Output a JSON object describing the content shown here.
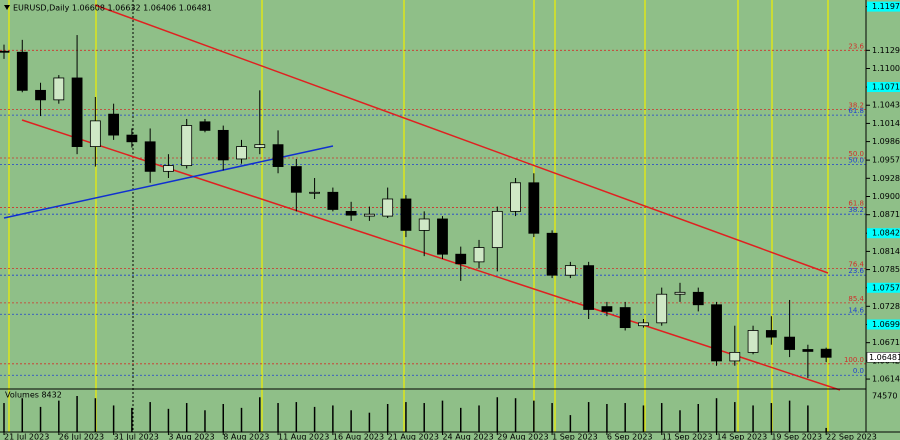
{
  "chart_data": {
    "type": "candlestick",
    "title": "EURUSD,Daily  1.06608 1.06632 1.06406 1.06481",
    "volume_label": "Volumes 8432",
    "categories": [
      "21 Jul 2023",
      null,
      null,
      "26 Jul 2023",
      null,
      null,
      "31 Jul 2023",
      null,
      null,
      "3 Aug 2023",
      null,
      null,
      "8 Aug 2023",
      null,
      null,
      "11 Aug 2023",
      null,
      null,
      "16 Aug 2023",
      null,
      null,
      "21 Aug 2023",
      null,
      null,
      "24 Aug 2023",
      null,
      null,
      "29 Aug 2023",
      null,
      null,
      "1 Sep 2023",
      null,
      null,
      "6 Sep 2023",
      null,
      null,
      "11 Sep 2023",
      null,
      null,
      "14 Sep 2023",
      null,
      null,
      "19 Sep 2023",
      null,
      null,
      "22 Sep 2023"
    ],
    "open": [
      1.11275,
      1.1126,
      1.10663,
      1.10514,
      1.10857,
      1.09782,
      1.1029,
      1.09962,
      1.09857,
      1.09394,
      1.09484,
      1.1017,
      1.10036,
      1.09588,
      1.09767,
      1.09812,
      1.09469,
      1.09051,
      1.09066,
      1.08767,
      1.08693,
      1.08693,
      1.08961,
      1.08469,
      1.08648,
      1.08096,
      1.07976,
      1.082,
      1.08767,
      1.09215,
      1.08424,
      1.07767,
      1.07917,
      1.07275,
      1.0726,
      1.06976,
      1.07021,
      1.07469,
      1.07499,
      1.07304,
      1.06424,
      1.06558,
      1.06901,
      1.06797,
      1.06603,
      1.06608
    ],
    "high": [
      1.1138,
      1.11454,
      1.10782,
      1.10902,
      1.11529,
      1.10559,
      1.10454,
      1.10066,
      1.10066,
      1.09663,
      1.10215,
      1.10215,
      1.10111,
      1.09887,
      1.10663,
      1.10036,
      1.09588,
      1.0929,
      1.0914,
      1.08917,
      1.08842,
      1.0914,
      1.09021,
      1.08767,
      1.08693,
      1.08215,
      1.0832,
      1.08842,
      1.0929,
      1.09364,
      1.08469,
      1.07976,
      1.07976,
      1.07349,
      1.07349,
      1.07081,
      1.07573,
      1.07648,
      1.07573,
      1.07349,
      1.06976,
      1.06976,
      1.07125,
      1.07379,
      1.06678,
      1.06632
    ],
    "low": [
      1.11156,
      1.10633,
      1.1026,
      1.10454,
      1.09663,
      1.09469,
      1.09887,
      1.09767,
      1.09215,
      1.0929,
      1.09439,
      1.10006,
      1.09409,
      1.09514,
      1.09663,
      1.09364,
      1.08767,
      1.08961,
      1.08767,
      1.08618,
      1.08618,
      1.08663,
      1.08364,
      1.08066,
      1.08021,
      1.07678,
      1.07872,
      1.07827,
      1.08693,
      1.08364,
      1.07722,
      1.07722,
      1.07081,
      1.07125,
      1.06901,
      1.06946,
      1.06976,
      1.07349,
      1.072,
      1.06349,
      1.06349,
      1.06528,
      1.06678,
      1.06484,
      1.06155,
      1.06406
    ],
    "close": [
      1.1126,
      1.10663,
      1.10514,
      1.10857,
      1.09782,
      1.10185,
      1.09962,
      1.09857,
      1.09394,
      1.09484,
      1.10111,
      1.10036,
      1.09573,
      1.09782,
      1.09812,
      1.09469,
      1.09066,
      1.09066,
      1.08797,
      1.08708,
      1.08723,
      1.08961,
      1.08469,
      1.08648,
      1.08096,
      1.07946,
      1.082,
      1.08767,
      1.09215,
      1.08424,
      1.07767,
      1.07917,
      1.0723,
      1.072,
      1.06946,
      1.07021,
      1.07469,
      1.07499,
      1.07304,
      1.06424,
      1.06558,
      1.06901,
      1.06797,
      1.06603,
      1.06573,
      1.06481
    ],
    "volumes": [
      60000,
      70000,
      52000,
      65000,
      74570,
      70000,
      55000,
      50000,
      62000,
      48000,
      60000,
      45000,
      58000,
      50000,
      72000,
      60000,
      62000,
      52000,
      55000,
      45000,
      40000,
      58000,
      62000,
      60000,
      65000,
      50000,
      55000,
      72000,
      70000,
      65000,
      60000,
      35000,
      62000,
      58000,
      60000,
      55000,
      60000,
      45000,
      58000,
      70000,
      62000,
      55000,
      60000,
      65000,
      55000,
      8432
    ],
    "bull_color": "#cfe8c6",
    "bear_color": "#000000",
    "ylim": [
      1.06,
      1.12
    ],
    "yticks": [
      {
        "value": 1.11975,
        "label": "1.11975",
        "highlight": true
      },
      {
        "value": 1.1129,
        "label": "1.11290"
      },
      {
        "value": 1.11005,
        "label": "1.11005"
      },
      {
        "value": 1.10715,
        "label": "1.10715",
        "highlight": true
      },
      {
        "value": 1.1043,
        "label": "1.10430"
      },
      {
        "value": 1.10145,
        "label": "1.10145"
      },
      {
        "value": 1.0986,
        "label": "1.09860"
      },
      {
        "value": 1.0957,
        "label": "1.09570"
      },
      {
        "value": 1.09285,
        "label": "1.09285"
      },
      {
        "value": 1.09,
        "label": "1.09000"
      },
      {
        "value": 1.08715,
        "label": "1.08715"
      },
      {
        "value": 1.08425,
        "label": "1.08425",
        "highlight": true
      },
      {
        "value": 1.0814,
        "label": "1.08140"
      },
      {
        "value": 1.07855,
        "label": "1.07855"
      },
      {
        "value": 1.0757,
        "label": "1.07570",
        "highlight": true
      },
      {
        "value": 1.0728,
        "label": "1.07280"
      },
      {
        "value": 1.06995,
        "label": "1.06995",
        "highlight": true
      },
      {
        "value": 1.0671,
        "label": "1.06710"
      },
      {
        "value": 1.06425,
        "label": "1.06425"
      },
      {
        "value": 1.0614,
        "label": "1.06140"
      }
    ],
    "highlight_color": "#00ffff",
    "vlim": [
      0,
      74570
    ],
    "levels": [
      {
        "value": 1.1129,
        "label": "23.6",
        "color": "#d0302a"
      },
      {
        "value": 1.10365,
        "label": "38.2",
        "color": "#d0302a"
      },
      {
        "value": 1.10275,
        "label": "61.8",
        "color": "#2040d0"
      },
      {
        "value": 1.09603,
        "label": "50.0",
        "color": "#d0302a"
      },
      {
        "value": 1.09499,
        "label": "50.0",
        "color": "#2040d0"
      },
      {
        "value": 1.08827,
        "label": "61.8",
        "color": "#d0302a"
      },
      {
        "value": 1.08723,
        "label": "38.2",
        "color": "#2040d0"
      },
      {
        "value": 1.07872,
        "label": "76.4",
        "color": "#d0302a"
      },
      {
        "value": 1.07767,
        "label": "23.6",
        "color": "#2040d0"
      },
      {
        "value": 1.07334,
        "label": "85.4",
        "color": "#d0302a"
      },
      {
        "value": 1.07155,
        "label": "14.6",
        "color": "#2040d0"
      },
      {
        "value": 1.06379,
        "label": "100.0",
        "color": "#d0302a"
      },
      {
        "value": 1.062,
        "label": "0.0",
        "color": "#2040d0"
      }
    ]
  }
}
